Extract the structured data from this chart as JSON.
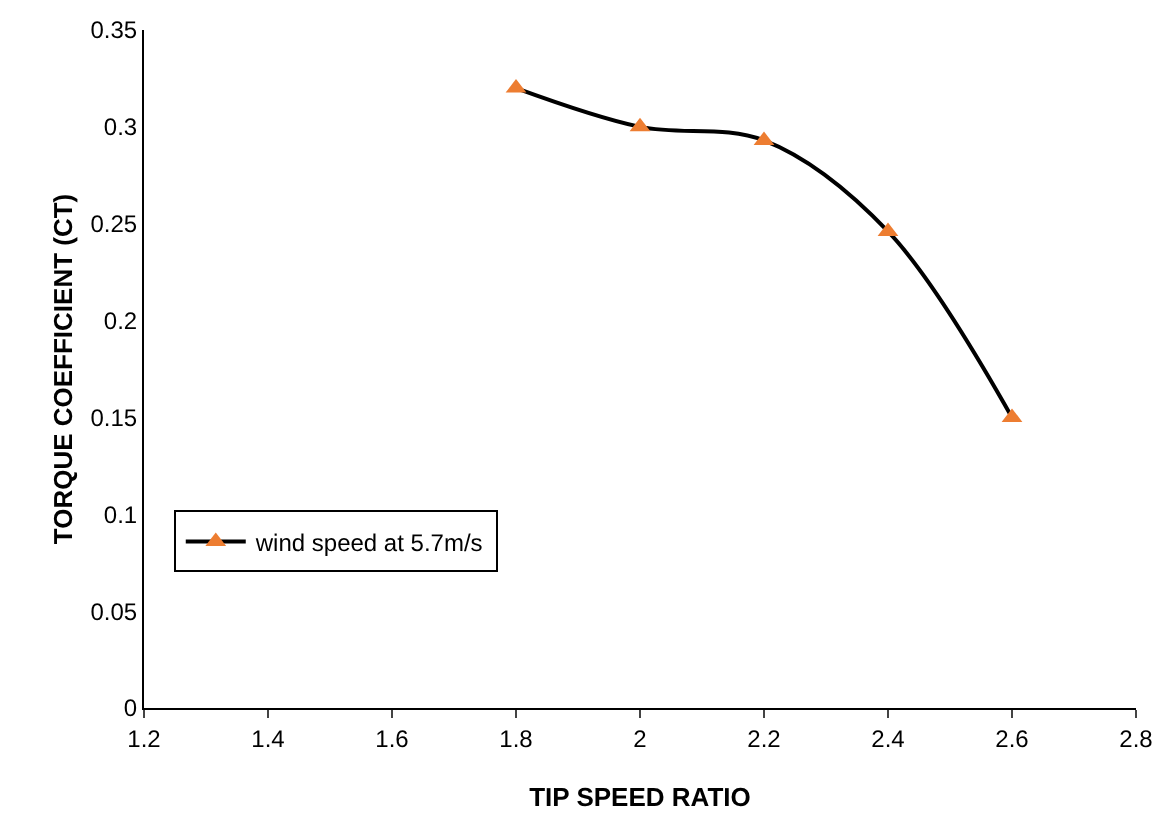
{
  "chart_data": {
    "type": "line",
    "xlabel": "TIP SPEED RATIO",
    "ylabel": "TORQUE COEFFICIENT (CT)",
    "x": [
      1.8,
      2.0,
      2.2,
      2.4,
      2.6
    ],
    "series": [
      {
        "name": "wind speed at 5.7m/s",
        "color": "#000000",
        "colors": [
          "#ed7d31",
          "#ed7d31",
          "#ed7d31",
          "#ed7d31",
          "#ed7d31"
        ],
        "values": [
          0.32,
          0.3,
          0.293,
          0.246,
          0.15
        ]
      }
    ],
    "xlim": [
      1.2,
      2.8
    ],
    "xticks": [
      1.2,
      1.4,
      1.6,
      1.8,
      2,
      2.2,
      2.4,
      2.6,
      2.8
    ],
    "ylim": [
      0,
      0.35
    ],
    "yticks": [
      0,
      0.05,
      0.1,
      0.15,
      0.2,
      0.25,
      0.3,
      0.35
    ],
    "grid": false,
    "legend": "bottom left",
    "marker": "triangle",
    "line_style": "solid"
  }
}
